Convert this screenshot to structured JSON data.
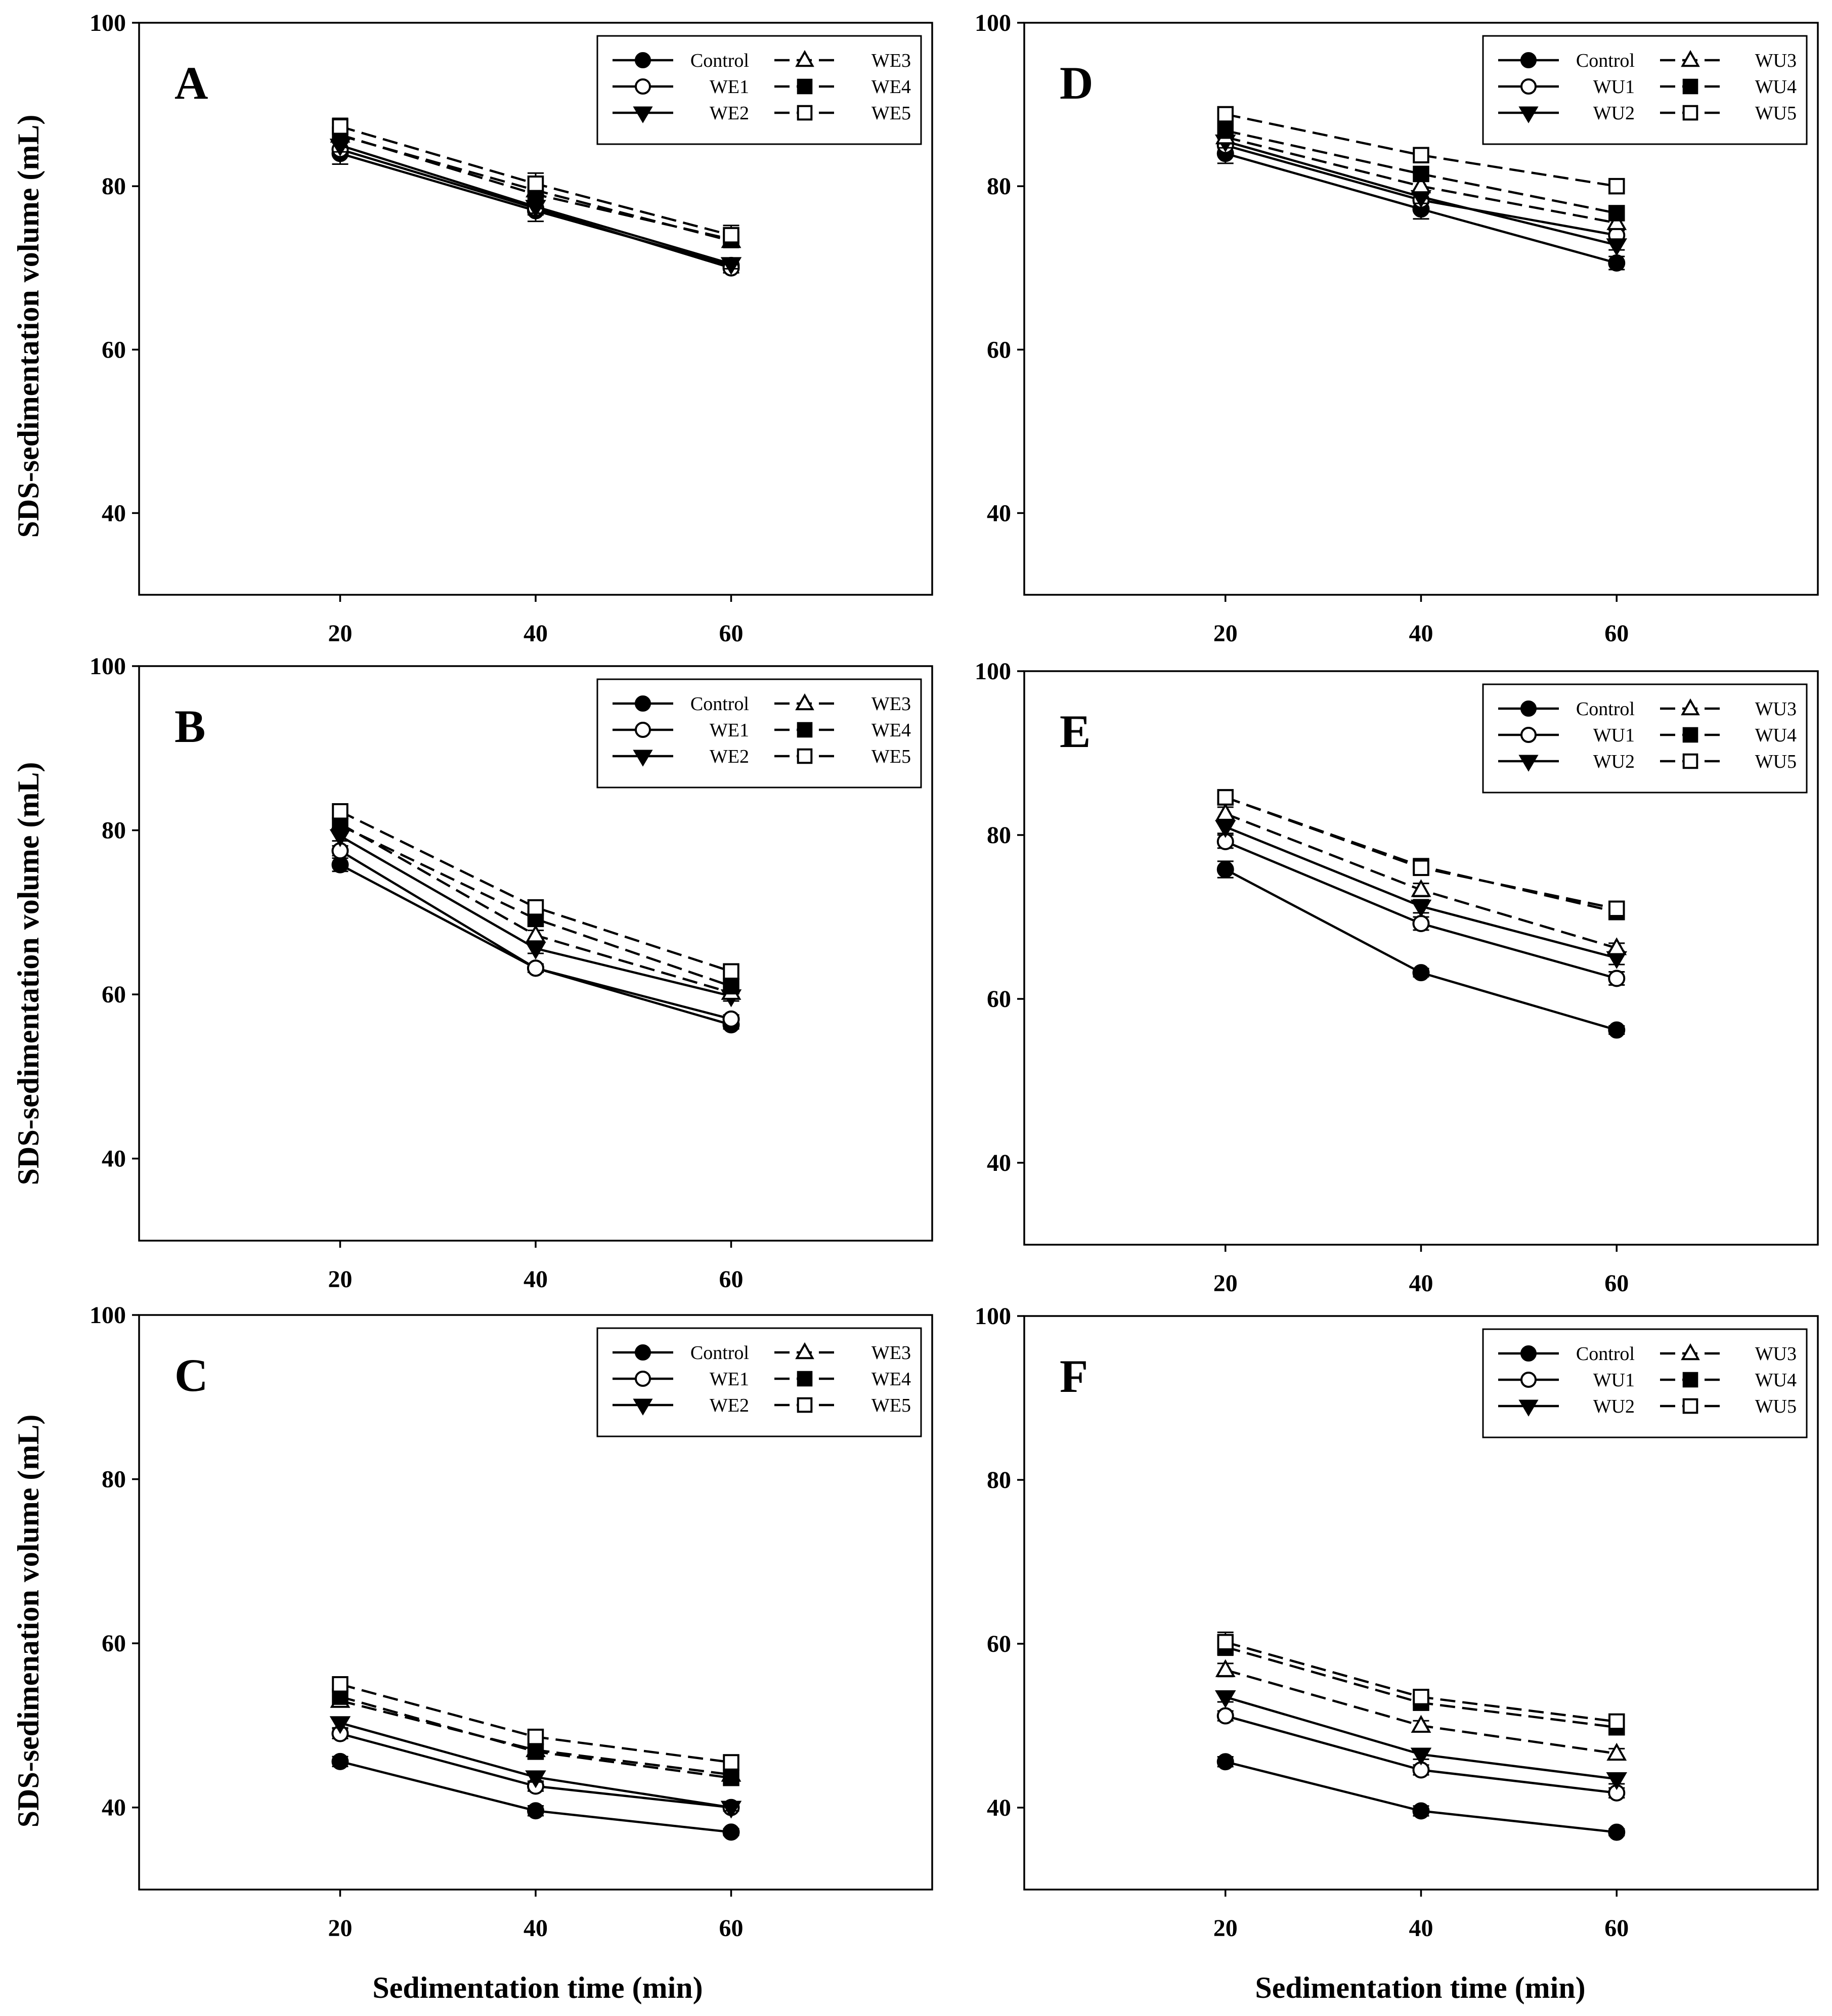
{
  "figure": {
    "left_ylabel_top": "SDS-sedimentation volume (mL)",
    "left_ylabel_mid": "SDS-sedimentation volume (mL)",
    "left_ylabel_bottom": "SDS-sedimenation volume (mL)",
    "xlabel": "Sedimentation time (min)"
  },
  "chart_data": [
    {
      "type": "line",
      "panel": "A",
      "x": [
        20,
        40,
        60
      ],
      "xticks": [
        "20",
        "40",
        "60"
      ],
      "ylim": [
        30,
        100
      ],
      "yticks": [
        40,
        60,
        80,
        100
      ],
      "series": [
        {
          "name": "Control",
          "marker": "filled-circle",
          "dashed": false,
          "values": [
            84.0,
            77.0,
            70.3
          ],
          "err": [
            1.3,
            1.3,
            0.6
          ]
        },
        {
          "name": "WE1",
          "marker": "open-circle",
          "dashed": false,
          "values": [
            84.5,
            77.3,
            70.0
          ],
          "err": [
            0.8,
            0.8,
            0.6
          ]
        },
        {
          "name": "WE2",
          "marker": "filled-triangle-down",
          "dashed": false,
          "values": [
            85.0,
            77.5,
            70.5
          ],
          "err": [
            0.8,
            0.8,
            0.6
          ]
        },
        {
          "name": "WE3",
          "marker": "open-triangle-up",
          "dashed": true,
          "values": [
            86.2,
            79.5,
            73.3
          ],
          "err": [
            0.8,
            0.8,
            0.8
          ]
        },
        {
          "name": "WE4",
          "marker": "filled-square",
          "dashed": true,
          "values": [
            86.3,
            79.0,
            73.5
          ],
          "err": [
            0.8,
            0.8,
            0.8
          ]
        },
        {
          "name": "WE5",
          "marker": "open-square",
          "dashed": true,
          "values": [
            87.3,
            80.3,
            74.0
          ],
          "err": [
            1.0,
            1.3,
            1.2
          ]
        }
      ]
    },
    {
      "type": "line",
      "panel": "B",
      "x": [
        20,
        40,
        60
      ],
      "xticks": [
        "20",
        "40",
        "60"
      ],
      "ylim": [
        30,
        100
      ],
      "yticks": [
        40,
        60,
        80,
        100
      ],
      "series": [
        {
          "name": "Control",
          "marker": "filled-circle",
          "dashed": false,
          "values": [
            75.8,
            63.2,
            56.3
          ],
          "err": [
            0.8,
            0.5,
            0.5
          ]
        },
        {
          "name": "WE1",
          "marker": "open-circle",
          "dashed": false,
          "values": [
            77.5,
            63.2,
            57.0
          ],
          "err": [
            0.6,
            0.5,
            0.5
          ]
        },
        {
          "name": "WE2",
          "marker": "filled-triangle-down",
          "dashed": false,
          "values": [
            79.3,
            65.6,
            59.8
          ],
          "err": [
            0.6,
            0.6,
            0.6
          ]
        },
        {
          "name": "WE3",
          "marker": "open-triangle-up",
          "dashed": true,
          "values": [
            80.8,
            67.2,
            60.2
          ],
          "err": [
            0.6,
            0.6,
            0.6
          ]
        },
        {
          "name": "WE4",
          "marker": "filled-square",
          "dashed": true,
          "values": [
            80.6,
            69.2,
            61.0
          ],
          "err": [
            0.6,
            0.6,
            0.6
          ]
        },
        {
          "name": "WE5",
          "marker": "open-square",
          "dashed": true,
          "values": [
            82.3,
            70.6,
            62.8
          ],
          "err": [
            0.6,
            0.8,
            0.6
          ]
        }
      ]
    },
    {
      "type": "line",
      "panel": "C",
      "x": [
        20,
        40,
        60
      ],
      "xticks": [
        "20",
        "40",
        "60"
      ],
      "ylim": [
        30,
        100
      ],
      "yticks": [
        40,
        60,
        80,
        100
      ],
      "series": [
        {
          "name": "Control",
          "marker": "filled-circle",
          "dashed": false,
          "values": [
            45.6,
            39.6,
            37.0
          ],
          "err": [
            0.6,
            0.6,
            0.4
          ]
        },
        {
          "name": "WE1",
          "marker": "open-circle",
          "dashed": false,
          "values": [
            49.0,
            42.6,
            40.0
          ],
          "err": [
            0.6,
            0.6,
            0.4
          ]
        },
        {
          "name": "WE2",
          "marker": "filled-triangle-down",
          "dashed": false,
          "values": [
            50.3,
            43.7,
            40.0
          ],
          "err": [
            0.6,
            0.6,
            0.4
          ]
        },
        {
          "name": "WE3",
          "marker": "open-triangle-up",
          "dashed": true,
          "values": [
            53.0,
            47.0,
            44.0
          ],
          "err": [
            0.6,
            0.6,
            0.6
          ]
        },
        {
          "name": "WE4",
          "marker": "filled-square",
          "dashed": true,
          "values": [
            53.5,
            46.8,
            43.6
          ],
          "err": [
            0.6,
            0.6,
            0.6
          ]
        },
        {
          "name": "WE5",
          "marker": "open-square",
          "dashed": true,
          "values": [
            55.0,
            48.6,
            45.5
          ],
          "err": [
            0.6,
            0.8,
            0.6
          ]
        }
      ]
    },
    {
      "type": "line",
      "panel": "D",
      "x": [
        20,
        40,
        60
      ],
      "xticks": [
        "20",
        "40",
        "60"
      ],
      "ylim": [
        30,
        100
      ],
      "yticks": [
        40,
        60,
        80,
        100
      ],
      "series": [
        {
          "name": "Control",
          "marker": "filled-circle",
          "dashed": false,
          "values": [
            84.0,
            77.2,
            70.6
          ],
          "err": [
            1.2,
            1.2,
            0.8
          ]
        },
        {
          "name": "WU1",
          "marker": "open-circle",
          "dashed": false,
          "values": [
            85.0,
            78.3,
            74.0
          ],
          "err": [
            0.8,
            0.8,
            0.6
          ]
        },
        {
          "name": "WU2",
          "marker": "filled-triangle-down",
          "dashed": false,
          "values": [
            85.5,
            78.7,
            72.8
          ],
          "err": [
            0.8,
            0.8,
            0.6
          ]
        },
        {
          "name": "WU3",
          "marker": "open-triangle-up",
          "dashed": true,
          "values": [
            86.0,
            80.0,
            75.5
          ],
          "err": [
            0.8,
            0.8,
            0.6
          ]
        },
        {
          "name": "WU4",
          "marker": "filled-square",
          "dashed": true,
          "values": [
            86.8,
            81.5,
            76.7
          ],
          "err": [
            0.8,
            0.8,
            0.6
          ]
        },
        {
          "name": "WU5",
          "marker": "open-square",
          "dashed": true,
          "values": [
            88.8,
            83.8,
            80.0
          ],
          "err": [
            0.6,
            0.6,
            0.5
          ]
        }
      ]
    },
    {
      "type": "line",
      "panel": "E",
      "x": [
        20,
        40,
        60
      ],
      "xticks": [
        "20",
        "40",
        "60"
      ],
      "ylim": [
        30,
        100
      ],
      "yticks": [
        40,
        60,
        80,
        100
      ],
      "series": [
        {
          "name": "Control",
          "marker": "filled-circle",
          "dashed": false,
          "values": [
            75.8,
            63.2,
            56.2
          ],
          "err": [
            1.0,
            0.5,
            0.5
          ]
        },
        {
          "name": "WU1",
          "marker": "open-circle",
          "dashed": false,
          "values": [
            79.2,
            69.2,
            62.5
          ],
          "err": [
            0.8,
            0.8,
            0.8
          ]
        },
        {
          "name": "WU2",
          "marker": "filled-triangle-down",
          "dashed": false,
          "values": [
            81.0,
            71.3,
            65.0
          ],
          "err": [
            0.8,
            0.8,
            0.8
          ]
        },
        {
          "name": "WU3",
          "marker": "open-triangle-up",
          "dashed": true,
          "values": [
            82.6,
            73.3,
            66.2
          ],
          "err": [
            0.8,
            0.8,
            0.6
          ]
        },
        {
          "name": "WU4",
          "marker": "filled-square",
          "dashed": true,
          "values": [
            84.6,
            76.2,
            70.6
          ],
          "err": [
            0.8,
            0.6,
            0.6
          ]
        },
        {
          "name": "WU5",
          "marker": "open-square",
          "dashed": true,
          "values": [
            84.6,
            76.0,
            71.0
          ],
          "err": [
            0.8,
            0.6,
            0.6
          ]
        }
      ]
    },
    {
      "type": "line",
      "panel": "F",
      "x": [
        20,
        40,
        60
      ],
      "xticks": [
        "20",
        "40",
        "60"
      ],
      "ylim": [
        30,
        100
      ],
      "yticks": [
        40,
        60,
        80,
        100
      ],
      "series": [
        {
          "name": "Control",
          "marker": "filled-circle",
          "dashed": false,
          "values": [
            45.6,
            39.6,
            37.0
          ],
          "err": [
            0.6,
            0.6,
            0.4
          ]
        },
        {
          "name": "WU1",
          "marker": "open-circle",
          "dashed": false,
          "values": [
            51.2,
            44.6,
            41.8
          ],
          "err": [
            0.6,
            0.6,
            0.6
          ]
        },
        {
          "name": "WU2",
          "marker": "filled-triangle-down",
          "dashed": false,
          "values": [
            53.5,
            46.5,
            43.5
          ],
          "err": [
            0.6,
            0.6,
            0.6
          ]
        },
        {
          "name": "WU3",
          "marker": "open-triangle-up",
          "dashed": true,
          "values": [
            56.8,
            50.0,
            46.6
          ],
          "err": [
            0.8,
            0.6,
            0.6
          ]
        },
        {
          "name": "WU4",
          "marker": "filled-square",
          "dashed": true,
          "values": [
            59.6,
            52.8,
            49.8
          ],
          "err": [
            1.0,
            0.8,
            0.8
          ]
        },
        {
          "name": "WU5",
          "marker": "open-square",
          "dashed": true,
          "values": [
            60.2,
            53.5,
            50.5
          ],
          "err": [
            1.2,
            0.8,
            0.8
          ]
        }
      ]
    }
  ]
}
